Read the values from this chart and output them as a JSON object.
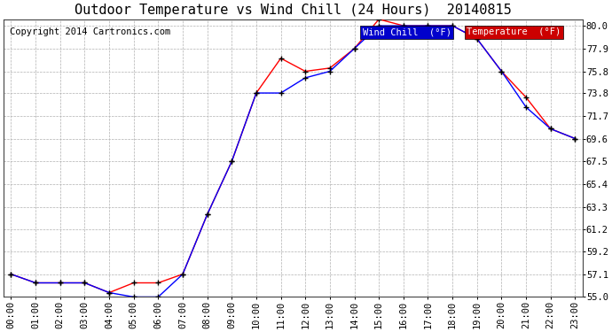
{
  "title": "Outdoor Temperature vs Wind Chill (24 Hours)  20140815",
  "copyright": "Copyright 2014 Cartronics.com",
  "hours": [
    "00:00",
    "01:00",
    "02:00",
    "03:00",
    "04:00",
    "05:00",
    "06:00",
    "07:00",
    "08:00",
    "09:00",
    "10:00",
    "11:00",
    "12:00",
    "13:00",
    "14:00",
    "15:00",
    "16:00",
    "17:00",
    "18:00",
    "19:00",
    "20:00",
    "21:00",
    "22:00",
    "23:00"
  ],
  "temperature": [
    57.1,
    56.3,
    56.3,
    56.3,
    55.4,
    56.3,
    56.3,
    57.1,
    62.6,
    67.5,
    73.8,
    77.0,
    75.8,
    76.1,
    77.9,
    80.6,
    80.0,
    80.0,
    80.0,
    78.8,
    75.8,
    73.4,
    70.5,
    69.6
  ],
  "wind_chill": [
    57.1,
    56.3,
    56.3,
    56.3,
    55.4,
    55.0,
    55.0,
    57.1,
    62.6,
    67.5,
    73.8,
    73.8,
    75.2,
    75.8,
    77.9,
    80.0,
    80.0,
    80.0,
    80.0,
    78.8,
    75.8,
    72.5,
    70.5,
    69.6
  ],
  "temp_color": "#ff0000",
  "wind_chill_color": "#0000ff",
  "marker_color": "#000000",
  "bg_color": "#ffffff",
  "grid_color": "#b0b0b0",
  "ylim": [
    55.0,
    80.6
  ],
  "yticks": [
    55.0,
    57.1,
    59.2,
    61.2,
    63.3,
    65.4,
    67.5,
    69.6,
    71.7,
    73.8,
    75.8,
    77.9,
    80.0
  ],
  "legend_wind_chill_bg": "#0000cc",
  "legend_temp_bg": "#cc0000",
  "legend_text_color": "#ffffff",
  "title_fontsize": 11,
  "copyright_fontsize": 7.5,
  "axis_fontsize": 7.5,
  "legend_fontsize": 7.5
}
